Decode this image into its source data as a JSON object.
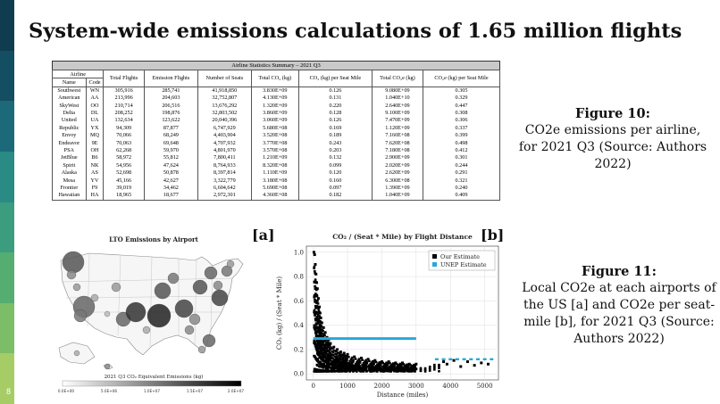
{
  "slide": {
    "title": "System-wide emissions calculations of 1.65 million flights",
    "page_number": "8"
  },
  "colors": {
    "sidebar": [
      "#0f3d4f",
      "#144e63",
      "#1c6a79",
      "#2a8a84",
      "#3b9c7e",
      "#56ad72",
      "#7cbd68",
      "#a6cc66"
    ]
  },
  "table": {
    "caption": "Airline Statistics Summary – 2021 Q3",
    "header_group": "Airline",
    "columns": [
      "Name",
      "Code",
      "Total Flights",
      "Emission Flights",
      "Number of Seats",
      "Total CO₂ (kg)",
      "CO₂ (kg) per Seat Mile",
      "Total CO₂e (kg)",
      "CO₂e (kg) per Seat Mile"
    ],
    "rows": [
      [
        "Southwest",
        "WN",
        "305,916",
        "285,741",
        "41,918,850",
        "3.830E+09",
        "0.126",
        "9.080E+09",
        "0.305"
      ],
      [
        "American",
        "AA",
        "213,996",
        "204,603",
        "32,752,807",
        "4.130E+09",
        "0.131",
        "1.040E+10",
        "0.329"
      ],
      [
        "SkyWest",
        "OO",
        "210,714",
        "206,516",
        "13,676,292",
        "1.320E+09",
        "0.220",
        "2.640E+09",
        "0.447"
      ],
      [
        "Delta",
        "DL",
        "208,252",
        "198,876",
        "32,803,502",
        "3.860E+09",
        "0.128",
        "9.100E+09",
        "0.308"
      ],
      [
        "United",
        "UA",
        "132,634",
        "123,622",
        "20,040,396",
        "3.060E+09",
        "0.126",
        "7.470E+09",
        "0.306"
      ],
      [
        "Republic",
        "YX",
        "94,309",
        "87,877",
        "6,747,929",
        "5.680E+08",
        "0.169",
        "1.120E+09",
        "0.337"
      ],
      [
        "Envoy",
        "MQ",
        "70,066",
        "68,249",
        "4,403,904",
        "3.520E+08",
        "0.189",
        "7.160E+08",
        "0.399"
      ],
      [
        "Endeavor",
        "9E",
        "70,063",
        "69,648",
        "4,707,932",
        "3.770E+08",
        "0.243",
        "7.620E+08",
        "0.498"
      ],
      [
        "PSA",
        "OH",
        "62,268",
        "59,970",
        "4,801,970",
        "3.570E+08",
        "0.203",
        "7.180E+08",
        "0.412"
      ],
      [
        "JetBlue",
        "B6",
        "58,972",
        "55,812",
        "7,800,411",
        "1.210E+09",
        "0.132",
        "2.900E+09",
        "0.301"
      ],
      [
        "Spirit",
        "NK",
        "54,956",
        "47,624",
        "8,764,933",
        "8.320E+08",
        "0.099",
        "2.020E+09",
        "0.244"
      ],
      [
        "Alaska",
        "AS",
        "52,698",
        "50,878",
        "8,397,814",
        "1.110E+09",
        "0.120",
        "2.620E+09",
        "0.291"
      ],
      [
        "Mesa",
        "YV",
        "45,166",
        "42,627",
        "3,322,779",
        "3.180E+08",
        "0.160",
        "6.300E+08",
        "0.321"
      ],
      [
        "Frontier",
        "F9",
        "39,019",
        "34,462",
        "6,604,642",
        "5.690E+08",
        "0.097",
        "1.390E+09",
        "0.240"
      ],
      [
        "Hawaiian",
        "HA",
        "18,965",
        "18,677",
        "2,972,301",
        "4.360E+08",
        "0.182",
        "1.040E+09",
        "0.409"
      ]
    ]
  },
  "figure10": {
    "label": "Figure 10:",
    "text": "CO2e emissions per airline, for 2021 Q3  (Source: Authors 2022)"
  },
  "figure11": {
    "label": "Figure 11:",
    "text": "Local CO2e at each airports of the US [a] and CO2e per seat-mile [b], for 2021 Q3 (Source: Authors 2022)"
  },
  "map": {
    "tag": "[a]",
    "title": "LTO Emissions by Airport",
    "colorbar_label": "2021 Q3 CO₂ Equivalent Emissions (kg)",
    "colorbar_ticks": [
      "0.0E+00",
      "5.0E+06",
      "1.0E+07",
      "1.5E+07",
      "2.0E+07"
    ]
  },
  "scatter": {
    "tag": "[b]"
  },
  "chart_data": {
    "type": "scatter",
    "title": "CO₂ / (Seat * Mile) by Flight Distance",
    "xlabel": "Distance (miles)",
    "ylabel": "CO₂ (kg) / (Seat * Mile)",
    "xlim": [
      -200,
      5400
    ],
    "ylim": [
      -0.05,
      1.05
    ],
    "xticks": [
      0,
      1000,
      2000,
      3000,
      4000,
      5000
    ],
    "yticks": [
      0.0,
      0.2,
      0.4,
      0.6,
      0.8,
      1.0
    ],
    "grid": true,
    "legend_position": "top-right",
    "series": [
      {
        "name": "Our Estimate",
        "color": "#000000",
        "marker": "square",
        "points": [
          [
            20,
            1.0
          ],
          [
            40,
            0.98
          ],
          [
            60,
            0.9
          ],
          [
            80,
            0.82
          ],
          [
            100,
            0.75
          ],
          [
            120,
            0.7
          ],
          [
            150,
            0.62
          ],
          [
            180,
            0.55
          ],
          [
            200,
            0.5
          ],
          [
            220,
            0.46
          ],
          [
            250,
            0.42
          ],
          [
            300,
            0.38
          ],
          [
            350,
            0.34
          ],
          [
            400,
            0.3
          ],
          [
            450,
            0.28
          ],
          [
            500,
            0.25
          ],
          [
            600,
            0.22
          ],
          [
            700,
            0.2
          ],
          [
            800,
            0.18
          ],
          [
            900,
            0.17
          ],
          [
            1000,
            0.16
          ],
          [
            1200,
            0.14
          ],
          [
            1400,
            0.13
          ],
          [
            1600,
            0.12
          ],
          [
            1800,
            0.11
          ],
          [
            2000,
            0.1
          ],
          [
            2200,
            0.1
          ],
          [
            2400,
            0.09
          ],
          [
            2600,
            0.09
          ],
          [
            2800,
            0.08
          ],
          [
            3000,
            0.08
          ],
          [
            100,
            0.45
          ],
          [
            150,
            0.35
          ],
          [
            250,
            0.28
          ],
          [
            350,
            0.22
          ],
          [
            500,
            0.15
          ],
          [
            700,
            0.12
          ],
          [
            900,
            0.1
          ],
          [
            1100,
            0.08
          ],
          [
            1300,
            0.07
          ],
          [
            1600,
            0.06
          ],
          [
            1900,
            0.05
          ],
          [
            2300,
            0.05
          ],
          [
            2700,
            0.04
          ],
          [
            3000,
            0.04
          ],
          [
            3800,
            0.1
          ],
          [
            3900,
            0.08
          ],
          [
            4100,
            0.11
          ],
          [
            4300,
            0.06
          ],
          [
            4500,
            0.1
          ],
          [
            4700,
            0.07
          ],
          [
            4900,
            0.09
          ],
          [
            5100,
            0.08
          ]
        ]
      },
      {
        "name": "UNEP Estimate",
        "color": "#29a8d8",
        "marker": "square",
        "points": [
          [
            0,
            0.29
          ],
          [
            3000,
            0.29
          ],
          [
            3600,
            0.12
          ],
          [
            3800,
            0.12
          ],
          [
            4000,
            0.12
          ],
          [
            4200,
            0.12
          ],
          [
            4400,
            0.12
          ],
          [
            4600,
            0.12
          ],
          [
            4800,
            0.12
          ],
          [
            5000,
            0.12
          ],
          [
            5200,
            0.12
          ]
        ]
      }
    ]
  }
}
